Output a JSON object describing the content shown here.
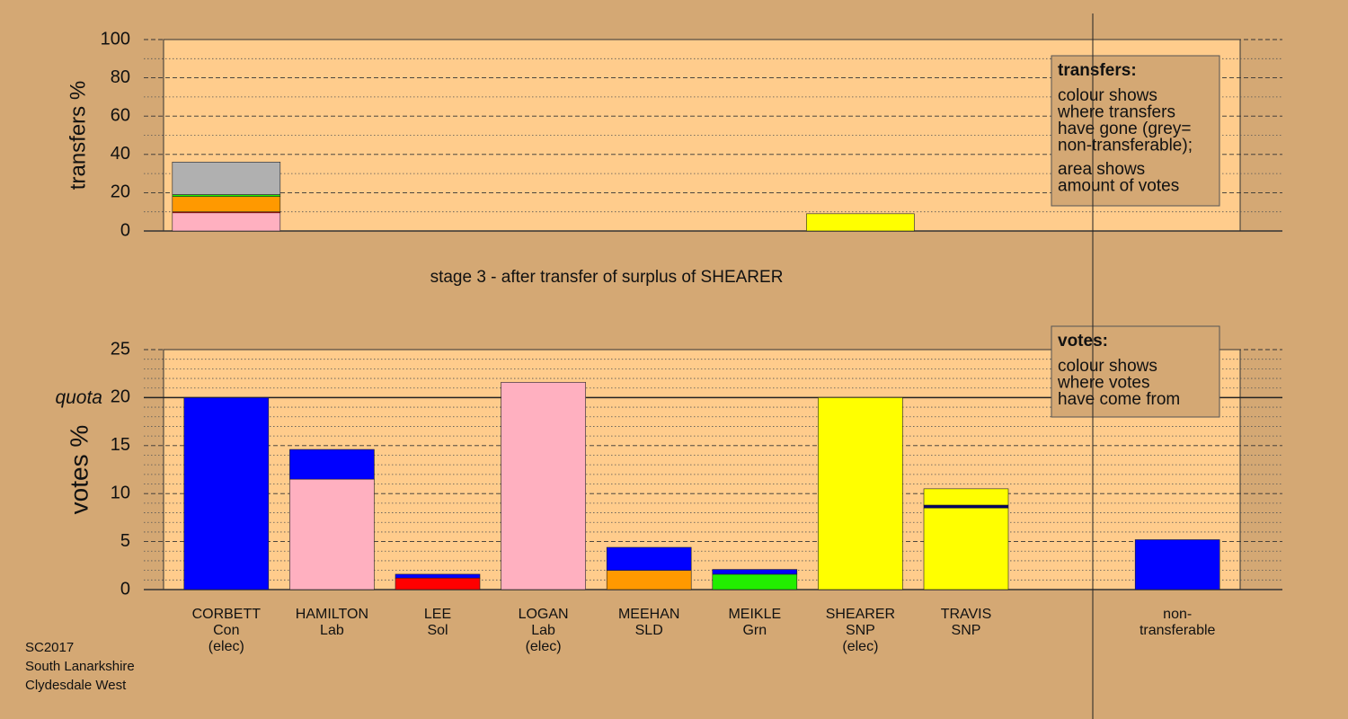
{
  "chart_data": [
    {
      "type": "stacked_bar",
      "ylabel": "transfers %",
      "ylim": [
        0,
        100
      ],
      "yticks": [
        0,
        20,
        40,
        60,
        80,
        100
      ],
      "minor_yticks": [
        10,
        30,
        50,
        70,
        90
      ],
      "legend_title": "transfers:",
      "legend_text": [
        [
          "colour shows",
          "where transfers",
          "have gone (grey=",
          "non-transferable);"
        ],
        [
          "area shows",
          "amount of votes"
        ]
      ],
      "bars": [
        {
          "segments": [
            {
              "color": "#ffb0c0",
              "value": 9.5
            },
            {
              "color": "#ff0000",
              "value": 0.5
            },
            {
              "color": "#ff9900",
              "value": 8
            },
            {
              "color": "#22ee00",
              "value": 1
            },
            {
              "color": "#b0b0b0",
              "value": 17
            }
          ]
        },
        {
          "segments": []
        },
        {
          "segments": []
        },
        {
          "segments": []
        },
        {
          "segments": []
        },
        {
          "segments": []
        },
        {
          "segments": [
            {
              "color": "#ffff00",
              "value": 9
            }
          ]
        },
        {
          "segments": []
        },
        {
          "segments": []
        },
        {
          "segments": []
        }
      ]
    },
    {
      "type": "stacked_bar",
      "ylabel": "votes %",
      "ylim": [
        0,
        25
      ],
      "yticks": [
        0,
        5,
        10,
        15,
        20,
        25
      ],
      "minor_yticks": [
        1,
        2,
        3,
        4,
        6,
        7,
        8,
        9,
        11,
        12,
        13,
        14,
        16,
        17,
        18,
        19,
        21,
        22,
        23,
        24
      ],
      "quota": {
        "value": 20,
        "label": "quota"
      },
      "legend_title": "votes:",
      "legend_text": [
        [
          "colour shows",
          "where votes",
          "have come from"
        ]
      ],
      "categories": [
        [
          "CORBETT",
          "Con",
          "(elec)"
        ],
        [
          "HAMILTON",
          "Lab"
        ],
        [
          "LEE",
          "Sol"
        ],
        [
          "LOGAN",
          "Lab",
          "(elec)"
        ],
        [
          "MEEHAN",
          "SLD"
        ],
        [
          "MEIKLE",
          "Grn"
        ],
        [
          "SHEARER",
          "SNP",
          "(elec)"
        ],
        [
          "TRAVIS",
          "SNP"
        ],
        null,
        [
          "non-",
          "transferable"
        ]
      ],
      "bars": [
        {
          "segments": [
            {
              "color": "#0000ff",
              "value": 20
            }
          ]
        },
        {
          "segments": [
            {
              "color": "#ffb0c0",
              "value": 11.5
            },
            {
              "color": "#0000ff",
              "value": 3.1
            }
          ]
        },
        {
          "segments": [
            {
              "color": "#ff0000",
              "value": 1.2
            },
            {
              "color": "#0000ff",
              "value": 0.4
            }
          ]
        },
        {
          "segments": [
            {
              "color": "#ffb0c0",
              "value": 21.6
            }
          ]
        },
        {
          "segments": [
            {
              "color": "#ff9900",
              "value": 2
            },
            {
              "color": "#0000ff",
              "value": 2.4
            }
          ]
        },
        {
          "segments": [
            {
              "color": "#22ee00",
              "value": 1.6
            },
            {
              "color": "#0000ff",
              "value": 0.5
            }
          ]
        },
        {
          "segments": [
            {
              "color": "#ffff00",
              "value": 20
            }
          ]
        },
        {
          "segments": [
            {
              "color": "#ffff00",
              "value": 8.5
            },
            {
              "color": "#000066",
              "value": 0.3
            },
            {
              "color": "#ffff00",
              "value": 1.7
            }
          ]
        },
        {
          "segments": []
        },
        {
          "segments": [
            {
              "color": "#0000ff",
              "value": 5.2
            }
          ]
        }
      ]
    }
  ],
  "stage_label": "stage 3 - after transfer of surplus of SHEARER",
  "footer": [
    "SC2017",
    "South Lanarkshire",
    "Clydesdale West"
  ]
}
